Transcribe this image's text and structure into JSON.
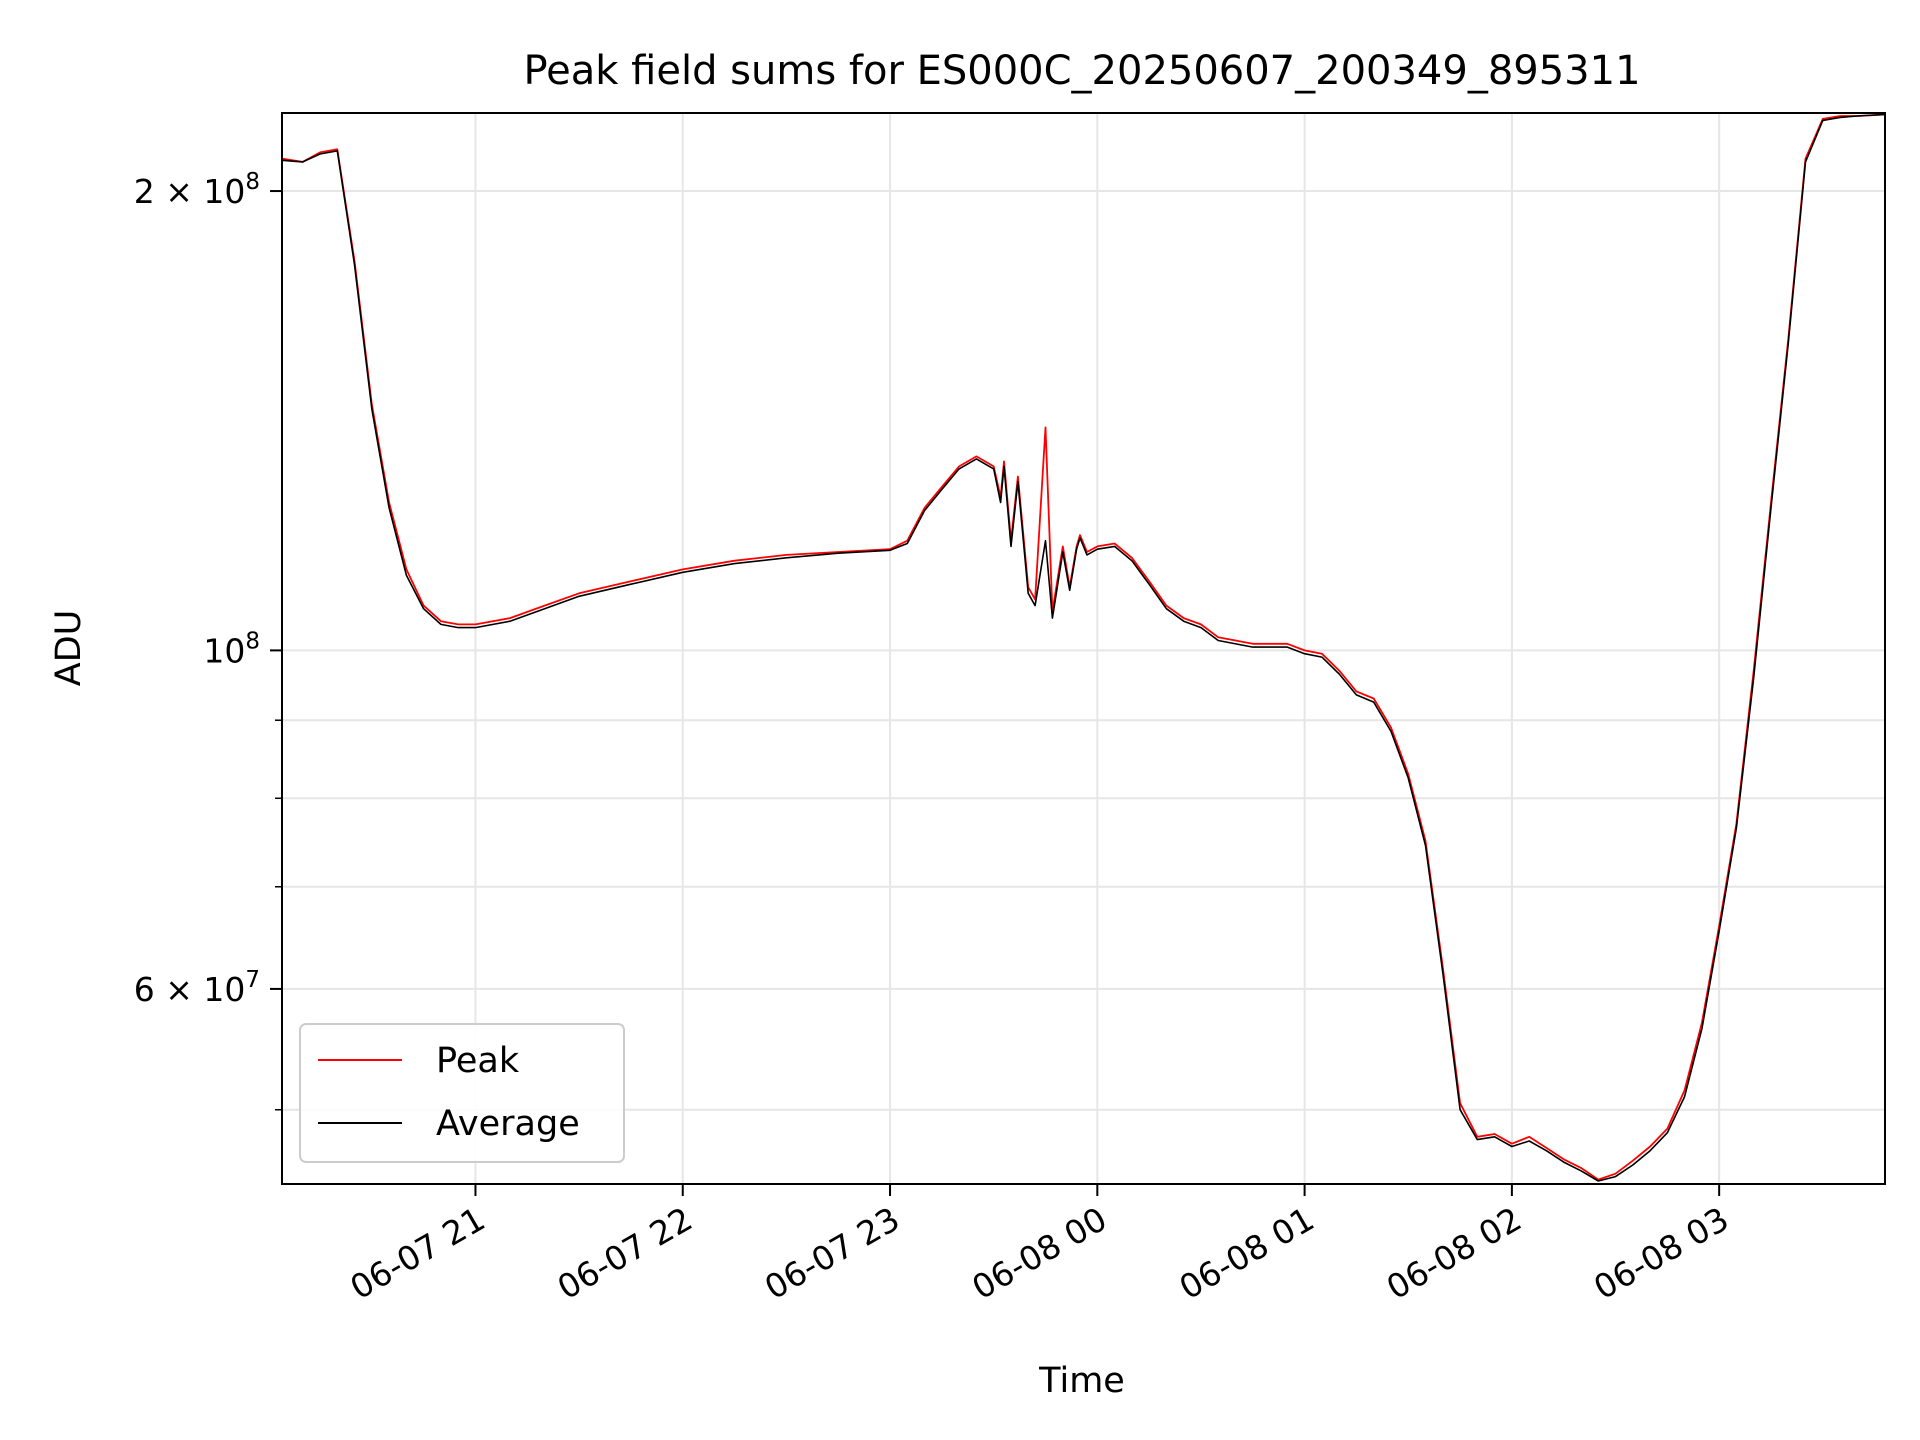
{
  "chart_data": {
    "type": "line",
    "title": "Peak field sums for ES000C_20250607_200349_895311",
    "xlabel": "Time",
    "ylabel": "ADU",
    "y_scale": "log",
    "grid": true,
    "legend_position": "lower-left",
    "xlim": [
      "2025-06-07 20:04",
      "2025-06-08 03:48"
    ],
    "ylim": [
      44700000,
      225000000
    ],
    "x_ticks": [
      "06-07 21",
      "06-07 22",
      "06-07 23",
      "06-08 00",
      "06-08 01",
      "06-08 02",
      "06-08 03"
    ],
    "x_tick_values": [
      "2025-06-07 21:00",
      "2025-06-07 22:00",
      "2025-06-07 23:00",
      "2025-06-08 00:00",
      "2025-06-08 01:00",
      "2025-06-08 02:00",
      "2025-06-08 03:00"
    ],
    "y_ticks": [
      {
        "value": 60000000,
        "mantissa": "6",
        "exponent": "7"
      },
      {
        "value": 100000000,
        "mantissa": "",
        "exponent": "8"
      },
      {
        "value": 200000000,
        "mantissa": "2",
        "exponent": "8"
      }
    ],
    "y_minor_ticks": [
      50000000,
      70000000,
      80000000,
      90000000
    ],
    "series": [
      {
        "name": "Peak",
        "color": "#ff0000",
        "x": [
          "2025-06-07 20:04",
          "2025-06-07 20:10",
          "2025-06-07 20:15",
          "2025-06-07 20:20",
          "2025-06-07 20:25",
          "2025-06-07 20:30",
          "2025-06-07 20:35",
          "2025-06-07 20:40",
          "2025-06-07 20:45",
          "2025-06-07 20:50",
          "2025-06-07 20:55",
          "2025-06-07 21:00",
          "2025-06-07 21:10",
          "2025-06-07 21:20",
          "2025-06-07 21:30",
          "2025-06-07 21:45",
          "2025-06-07 22:00",
          "2025-06-07 22:15",
          "2025-06-07 22:30",
          "2025-06-07 22:45",
          "2025-06-07 23:00",
          "2025-06-07 23:05",
          "2025-06-07 23:10",
          "2025-06-07 23:15",
          "2025-06-07 23:20",
          "2025-06-07 23:25",
          "2025-06-07 23:30",
          "2025-06-07 23:32",
          "2025-06-07 23:33",
          "2025-06-07 23:35",
          "2025-06-07 23:37",
          "2025-06-07 23:40",
          "2025-06-07 23:42",
          "2025-06-07 23:45",
          "2025-06-07 23:47",
          "2025-06-07 23:50",
          "2025-06-07 23:52",
          "2025-06-07 23:54",
          "2025-06-07 23:55",
          "2025-06-07 23:57",
          "2025-06-08 00:00",
          "2025-06-08 00:05",
          "2025-06-08 00:10",
          "2025-06-08 00:15",
          "2025-06-08 00:20",
          "2025-06-08 00:25",
          "2025-06-08 00:30",
          "2025-06-08 00:35",
          "2025-06-08 00:45",
          "2025-06-08 00:55",
          "2025-06-08 01:00",
          "2025-06-08 01:05",
          "2025-06-08 01:10",
          "2025-06-08 01:15",
          "2025-06-08 01:20",
          "2025-06-08 01:25",
          "2025-06-08 01:30",
          "2025-06-08 01:35",
          "2025-06-08 01:40",
          "2025-06-08 01:45",
          "2025-06-08 01:50",
          "2025-06-08 01:55",
          "2025-06-08 02:00",
          "2025-06-08 02:05",
          "2025-06-08 02:10",
          "2025-06-08 02:15",
          "2025-06-08 02:20",
          "2025-06-08 02:25",
          "2025-06-08 02:30",
          "2025-06-08 02:35",
          "2025-06-08 02:40",
          "2025-06-08 02:45",
          "2025-06-08 02:50",
          "2025-06-08 02:55",
          "2025-06-08 03:00",
          "2025-06-08 03:05",
          "2025-06-08 03:10",
          "2025-06-08 03:15",
          "2025-06-08 03:20",
          "2025-06-08 03:25",
          "2025-06-08 03:30",
          "2025-06-08 03:35",
          "2025-06-08 03:40",
          "2025-06-08 03:48"
        ],
        "values": [
          210000000,
          209000000,
          212000000,
          213000000,
          180000000,
          145000000,
          125000000,
          113000000,
          107000000,
          104500000,
          104000000,
          104000000,
          105000000,
          107000000,
          109000000,
          111000000,
          113000000,
          114500000,
          115500000,
          116000000,
          116500000,
          118000000,
          124000000,
          128000000,
          132000000,
          134000000,
          132000000,
          126000000,
          133000000,
          118000000,
          130000000,
          110000000,
          108000000,
          140000000,
          106000000,
          117000000,
          110000000,
          117000000,
          119000000,
          116000000,
          117000000,
          117500000,
          115000000,
          111000000,
          107000000,
          105000000,
          104000000,
          102000000,
          101000000,
          101000000,
          100000000,
          99500000,
          97000000,
          94000000,
          93000000,
          89000000,
          83000000,
          75000000,
          62000000,
          50500000,
          48000000,
          48200000,
          47500000,
          48000000,
          47200000,
          46400000,
          45800000,
          45000000,
          45400000,
          46300000,
          47300000,
          48600000,
          51500000,
          57000000,
          66000000,
          77000000,
          97000000,
          125000000,
          160000000,
          210000000,
          223000000,
          224000000,
          224000000,
          224500000
        ]
      },
      {
        "name": "Average",
        "color": "#000000",
        "x": [
          "2025-06-07 20:04",
          "2025-06-07 20:10",
          "2025-06-07 20:15",
          "2025-06-07 20:20",
          "2025-06-07 20:25",
          "2025-06-07 20:30",
          "2025-06-07 20:35",
          "2025-06-07 20:40",
          "2025-06-07 20:45",
          "2025-06-07 20:50",
          "2025-06-07 20:55",
          "2025-06-07 21:00",
          "2025-06-07 21:10",
          "2025-06-07 21:20",
          "2025-06-07 21:30",
          "2025-06-07 21:45",
          "2025-06-07 22:00",
          "2025-06-07 22:15",
          "2025-06-07 22:30",
          "2025-06-07 22:45",
          "2025-06-07 23:00",
          "2025-06-07 23:05",
          "2025-06-07 23:10",
          "2025-06-07 23:15",
          "2025-06-07 23:20",
          "2025-06-07 23:25",
          "2025-06-07 23:30",
          "2025-06-07 23:32",
          "2025-06-07 23:33",
          "2025-06-07 23:35",
          "2025-06-07 23:37",
          "2025-06-07 23:40",
          "2025-06-07 23:42",
          "2025-06-07 23:45",
          "2025-06-07 23:47",
          "2025-06-07 23:50",
          "2025-06-07 23:52",
          "2025-06-07 23:54",
          "2025-06-07 23:55",
          "2025-06-07 23:57",
          "2025-06-08 00:00",
          "2025-06-08 00:05",
          "2025-06-08 00:10",
          "2025-06-08 00:15",
          "2025-06-08 00:20",
          "2025-06-08 00:25",
          "2025-06-08 00:30",
          "2025-06-08 00:35",
          "2025-06-08 00:45",
          "2025-06-08 00:55",
          "2025-06-08 01:00",
          "2025-06-08 01:05",
          "2025-06-08 01:10",
          "2025-06-08 01:15",
          "2025-06-08 01:20",
          "2025-06-08 01:25",
          "2025-06-08 01:30",
          "2025-06-08 01:35",
          "2025-06-08 01:40",
          "2025-06-08 01:45",
          "2025-06-08 01:50",
          "2025-06-08 01:55",
          "2025-06-08 02:00",
          "2025-06-08 02:05",
          "2025-06-08 02:10",
          "2025-06-08 02:15",
          "2025-06-08 02:20",
          "2025-06-08 02:25",
          "2025-06-08 02:30",
          "2025-06-08 02:35",
          "2025-06-08 02:40",
          "2025-06-08 02:45",
          "2025-06-08 02:50",
          "2025-06-08 02:55",
          "2025-06-08 03:00",
          "2025-06-08 03:05",
          "2025-06-08 03:10",
          "2025-06-08 03:15",
          "2025-06-08 03:20",
          "2025-06-08 03:25",
          "2025-06-08 03:30",
          "2025-06-08 03:35",
          "2025-06-08 03:40",
          "2025-06-08 03:48"
        ],
        "values": [
          209500000,
          209000000,
          211500000,
          212500000,
          179000000,
          144000000,
          124000000,
          112000000,
          106500000,
          104000000,
          103500000,
          103500000,
          104500000,
          106500000,
          108500000,
          110500000,
          112500000,
          114000000,
          115000000,
          115800000,
          116300000,
          117500000,
          123500000,
          127500000,
          131500000,
          133500000,
          131500000,
          125000000,
          132000000,
          117000000,
          129000000,
          109000000,
          107000000,
          118000000,
          105000000,
          116000000,
          109500000,
          116500000,
          118500000,
          115500000,
          116500000,
          117000000,
          114500000,
          110500000,
          106500000,
          104500000,
          103500000,
          101500000,
          100500000,
          100500000,
          99500000,
          99000000,
          96500000,
          93500000,
          92500000,
          88500000,
          82500000,
          74500000,
          61500000,
          50000000,
          47800000,
          48000000,
          47300000,
          47700000,
          47000000,
          46200000,
          45600000,
          44900000,
          45200000,
          46000000,
          47000000,
          48300000,
          51000000,
          56500000,
          65500000,
          76500000,
          96000000,
          124000000,
          159000000,
          209000000,
          222500000,
          223500000,
          224000000,
          224500000
        ]
      }
    ]
  }
}
